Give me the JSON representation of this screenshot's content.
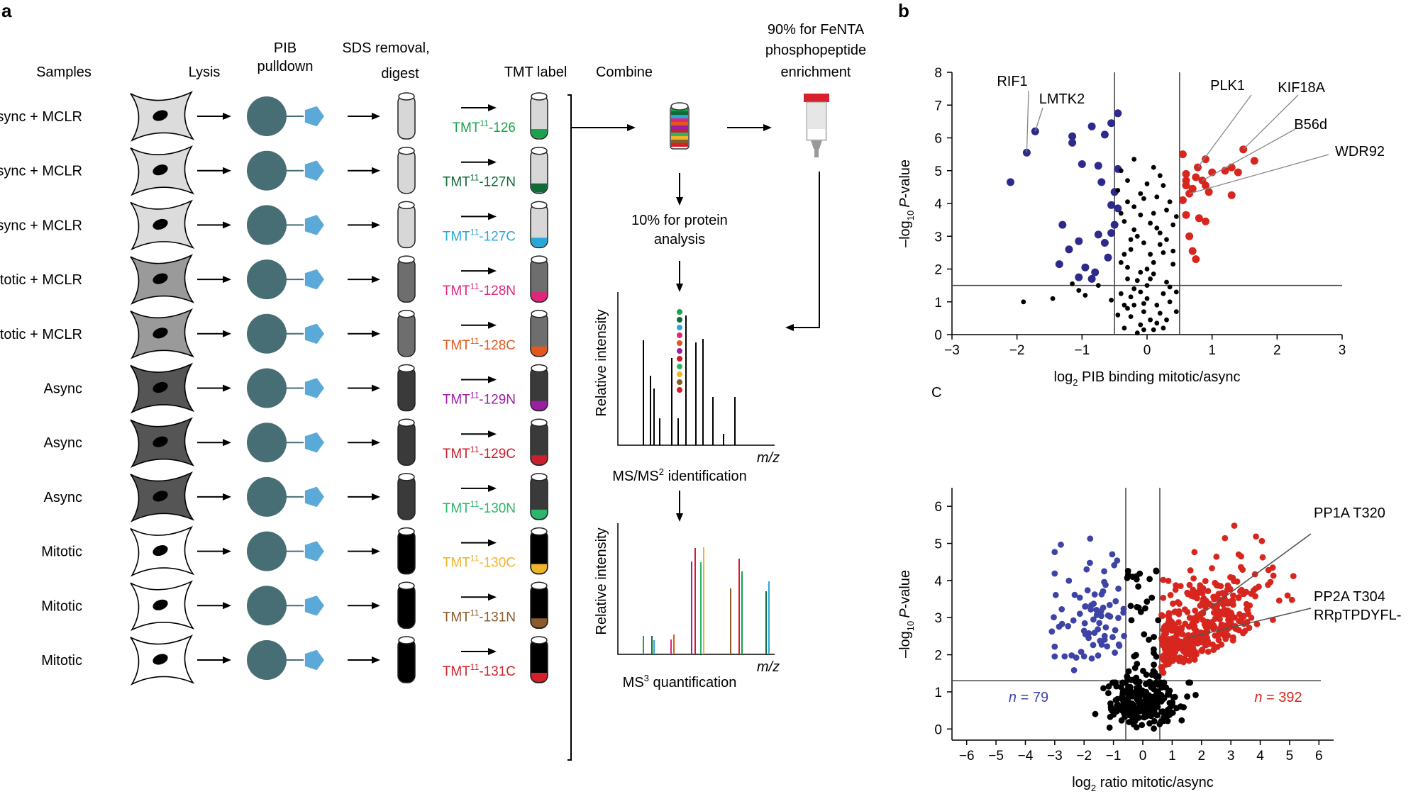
{
  "panel_a": {
    "label": "a",
    "headers": {
      "samples": "Samples",
      "lysis": "Lysis",
      "pib1": "PIB",
      "pib2": "pulldown",
      "sds1": "SDS removal,",
      "sds2": "digest",
      "tmt": "TMT label",
      "combine": "Combine",
      "fenta1": "90% for FeNTA",
      "fenta2": "phosphopeptide",
      "fenta3": "enrichment"
    },
    "rows": [
      {
        "sample": "Async + MCLR",
        "tmt_sup": "11",
        "tmt_suffix": "-126",
        "tag_color": "#1aa34a",
        "cell_fill": "#dcdcdc",
        "tube_fill": "#d7d7d7"
      },
      {
        "sample": "Async + MCLR",
        "tmt_sup": "11",
        "tmt_suffix": "-127N",
        "tag_color": "#0f6b36",
        "cell_fill": "#dcdcdc",
        "tube_fill": "#d7d7d7"
      },
      {
        "sample": "Async + MCLR",
        "tmt_sup": "11",
        "tmt_suffix": "-127C",
        "tag_color": "#29a8d8",
        "cell_fill": "#dcdcdc",
        "tube_fill": "#d7d7d7"
      },
      {
        "sample": "Mitotic + MCLR",
        "tmt_sup": "11",
        "tmt_suffix": "-128N",
        "tag_color": "#e0257a",
        "cell_fill": "#9a9a9a",
        "tube_fill": "#6e6e6e"
      },
      {
        "sample": "Mitotic + MCLR",
        "tmt_sup": "11",
        "tmt_suffix": "-128C",
        "tag_color": "#e4581e",
        "cell_fill": "#9a9a9a",
        "tube_fill": "#6e6e6e"
      },
      {
        "sample": "Async",
        "tmt_sup": "11",
        "tmt_suffix": "-129N",
        "tag_color": "#9b1fa3",
        "cell_fill": "#555555",
        "tube_fill": "#3a3a3a"
      },
      {
        "sample": "Async",
        "tmt_sup": "11",
        "tmt_suffix": "-129C",
        "tag_color": "#c8202c",
        "cell_fill": "#555555",
        "tube_fill": "#3a3a3a"
      },
      {
        "sample": "Async",
        "tmt_sup": "11",
        "tmt_suffix": "-130N",
        "tag_color": "#2db56b",
        "cell_fill": "#555555",
        "tube_fill": "#3a3a3a"
      },
      {
        "sample": "Mitotic",
        "tmt_sup": "11",
        "tmt_suffix": "-130C",
        "tag_color": "#f0b429",
        "cell_fill": "#ffffff",
        "tube_fill": "#000000"
      },
      {
        "sample": "Mitotic",
        "tmt_sup": "11",
        "tmt_suffix": "-131N",
        "tag_color": "#8b5a2b",
        "cell_fill": "#ffffff",
        "tube_fill": "#000000"
      },
      {
        "sample": "Mitotic",
        "tmt_sup": "11",
        "tmt_suffix": "-131C",
        "tag_color": "#d4202a",
        "cell_fill": "#ffffff",
        "tube_fill": "#000000"
      }
    ],
    "tmt_prefix": "TMT",
    "protein1": "10% for protein",
    "protein2": "analysis",
    "ms2": {
      "ylabel": "Relative intensity",
      "xlabel": "m/z",
      "caption_pre": "MS/MS",
      "caption_sup": "2",
      "caption_post": " identification"
    },
    "ms3": {
      "ylabel": "Relative intensity",
      "xlabel": "m/z",
      "caption_pre": "MS",
      "caption_sup": "3",
      "caption_post": " quantification"
    },
    "colors": {
      "bead": "#466e74",
      "pentagon": "#5ba9d9",
      "cap": "#d9212b"
    }
  },
  "panel_b": {
    "label": "b",
    "stray_label": "C",
    "chart_data": [
      {
        "type": "scatter",
        "title": "",
        "xlabel_pre": "log",
        "xlabel_sub": "2",
        "xlabel_post": " PIB binding mitotic/async",
        "ylabel_pre": "–log",
        "ylabel_sub": "10",
        "ylabel_italic": "P",
        "ylabel_post": "-value",
        "xlim": [
          -3,
          3
        ],
        "ylim": [
          0,
          8
        ],
        "xticks": [
          -3,
          -2,
          -1,
          0,
          1,
          2,
          3
        ],
        "xtick_labels": [
          "−3",
          "−2",
          "−1",
          "0",
          "1",
          "2",
          "3"
        ],
        "yticks": [
          0,
          1,
          2,
          3,
          4,
          5,
          6,
          7,
          8
        ],
        "ytick_labels": [
          "0",
          "1",
          "2",
          "3",
          "4",
          "5",
          "6",
          "7",
          "8"
        ],
        "vlines": [
          -0.5,
          0.5
        ],
        "hline": 1.5,
        "annotations": [
          {
            "text": "RIF1",
            "x": -1.85,
            "y": 5.55,
            "label_anchor": "upper-left"
          },
          {
            "text": "LMTK2",
            "x": -1.72,
            "y": 6.2,
            "label_anchor": "upper-left"
          },
          {
            "text": "PLK1",
            "x": 0.78,
            "y": 5.1,
            "label_anchor": "upper-right"
          },
          {
            "text": "KIF18A",
            "x": 1.48,
            "y": 5.65,
            "label_anchor": "upper-right"
          },
          {
            "text": "B56d",
            "x": 0.85,
            "y": 4.7,
            "label_anchor": "right"
          },
          {
            "text": "WDR92",
            "x": 0.65,
            "y": 4.3,
            "label_anchor": "right"
          }
        ],
        "series": [
          {
            "name": "down",
            "color": "#2e2a8c",
            "points": [
              [
                -1.85,
                5.55
              ],
              [
                -1.72,
                6.2
              ],
              [
                -2.1,
                4.65
              ],
              [
                -1.15,
                6.05
              ],
              [
                -1.15,
                5.85
              ],
              [
                -0.85,
                6.35
              ],
              [
                -0.65,
                6.1
              ],
              [
                -0.45,
                6.75
              ],
              [
                -0.55,
                6.45
              ],
              [
                -1.0,
                5.2
              ],
              [
                -0.75,
                5.15
              ],
              [
                -0.45,
                5.05
              ],
              [
                -0.7,
                4.65
              ],
              [
                -0.5,
                4.35
              ],
              [
                -0.55,
                3.95
              ],
              [
                -0.45,
                3.85
              ],
              [
                -1.3,
                3.35
              ],
              [
                -0.5,
                3.35
              ],
              [
                -0.55,
                3.1
              ],
              [
                -0.75,
                3.05
              ],
              [
                -1.05,
                2.85
              ],
              [
                -0.65,
                2.8
              ],
              [
                -1.2,
                2.6
              ],
              [
                -0.6,
                2.35
              ],
              [
                -1.35,
                2.15
              ],
              [
                -0.95,
                2.05
              ],
              [
                -0.8,
                1.9
              ],
              [
                -1.05,
                1.75
              ],
              [
                -0.85,
                1.7
              ]
            ]
          },
          {
            "name": "up",
            "color": "#d7261e",
            "points": [
              [
                0.78,
                5.1
              ],
              [
                1.48,
                5.65
              ],
              [
                0.85,
                4.7
              ],
              [
                0.65,
                4.3
              ],
              [
                0.55,
                5.5
              ],
              [
                0.9,
                5.35
              ],
              [
                1.2,
                5.0
              ],
              [
                1.3,
                5.1
              ],
              [
                1.0,
                4.95
              ],
              [
                0.6,
                4.9
              ],
              [
                0.75,
                4.8
              ],
              [
                0.6,
                4.7
              ],
              [
                0.6,
                4.55
              ],
              [
                0.7,
                4.45
              ],
              [
                0.9,
                4.55
              ],
              [
                1.65,
                5.3
              ],
              [
                1.4,
                4.95
              ],
              [
                0.95,
                4.35
              ],
              [
                1.3,
                4.25
              ],
              [
                0.55,
                4.1
              ],
              [
                0.6,
                3.65
              ],
              [
                0.8,
                3.55
              ],
              [
                0.65,
                3.0
              ],
              [
                0.7,
                2.55
              ],
              [
                0.75,
                2.3
              ],
              [
                0.9,
                3.45
              ]
            ]
          },
          {
            "name": "ns",
            "color": "#000000",
            "points": [
              [
                -1.9,
                1.0
              ],
              [
                -1.45,
                1.1
              ],
              [
                -1.15,
                1.55
              ],
              [
                -1.05,
                1.35
              ],
              [
                -0.95,
                1.2
              ],
              [
                -0.75,
                1.5
              ],
              [
                -0.55,
                1.05
              ],
              [
                -0.35,
                0.9
              ],
              [
                -0.3,
                1.7
              ],
              [
                -0.4,
                2.2
              ],
              [
                -0.25,
                2.6
              ],
              [
                -0.15,
                3.0
              ],
              [
                -0.35,
                3.45
              ],
              [
                -0.2,
                3.9
              ],
              [
                -0.1,
                4.3
              ],
              [
                -0.3,
                4.7
              ],
              [
                -0.4,
                5.0
              ],
              [
                -0.2,
                5.35
              ],
              [
                0.1,
                5.1
              ],
              [
                0.0,
                4.6
              ],
              [
                0.15,
                4.2
              ],
              [
                0.3,
                3.8
              ],
              [
                0.05,
                3.4
              ],
              [
                0.2,
                3.1
              ],
              [
                -0.05,
                2.8
              ],
              [
                0.25,
                2.5
              ],
              [
                0.1,
                2.2
              ],
              [
                -0.1,
                1.9
              ],
              [
                0.3,
                1.6
              ],
              [
                0.45,
                1.3
              ],
              [
                -0.2,
                1.4
              ],
              [
                0.0,
                1.1
              ],
              [
                0.15,
                0.9
              ],
              [
                -0.05,
                0.7
              ],
              [
                0.05,
                0.45
              ],
              [
                -0.1,
                0.3
              ],
              [
                0.1,
                0.15
              ],
              [
                -0.25,
                0.55
              ],
              [
                0.2,
                0.65
              ],
              [
                -0.4,
                1.25
              ],
              [
                0.35,
                1.0
              ],
              [
                -0.15,
                0.05
              ],
              [
                0.0,
                1.5
              ],
              [
                -0.3,
                2.05
              ],
              [
                0.2,
                2.75
              ],
              [
                -0.2,
                3.2
              ],
              [
                0.4,
                3.35
              ],
              [
                0.35,
                4.05
              ],
              [
                -0.45,
                4.4
              ],
              [
                0.25,
                4.55
              ],
              [
                -0.1,
                3.65
              ],
              [
                0.1,
                3.7
              ],
              [
                0.3,
                2.9
              ],
              [
                -0.35,
                2.45
              ],
              [
                0.4,
                2.15
              ],
              [
                0.05,
                1.7
              ],
              [
                -0.25,
                1.15
              ],
              [
                0.25,
                1.25
              ],
              [
                -0.05,
                0.95
              ],
              [
                0.15,
                0.35
              ],
              [
                -0.3,
                0.8
              ],
              [
                0.45,
                0.7
              ],
              [
                -0.45,
                0.6
              ],
              [
                0.3,
                0.45
              ],
              [
                -0.15,
                1.65
              ],
              [
                0.05,
                2.45
              ],
              [
                -0.25,
                2.9
              ],
              [
                0.15,
                3.25
              ],
              [
                -0.4,
                3.7
              ],
              [
                0.45,
                3.6
              ],
              [
                -0.05,
                4.15
              ],
              [
                0.2,
                4.85
              ],
              [
                -0.3,
                4.05
              ],
              [
                0.4,
                2.55
              ],
              [
                0.0,
                2.0
              ],
              [
                -0.1,
                1.3
              ],
              [
                0.1,
                1.85
              ],
              [
                -0.2,
                0.9
              ],
              [
                0.35,
                1.45
              ],
              [
                0.25,
                0.2
              ],
              [
                -0.35,
                0.2
              ],
              [
                -0.05,
                0.15
              ]
            ]
          }
        ]
      },
      {
        "type": "scatter",
        "title": "",
        "xlabel_pre": "log",
        "xlabel_sub": "2",
        "xlabel_post": " ratio mitotic/async",
        "ylabel_pre": "–log",
        "ylabel_sub": "10",
        "ylabel_italic": "P",
        "ylabel_post": "-value",
        "xlim": [
          -6.5,
          6.5
        ],
        "ylim": [
          -0.3,
          6.5
        ],
        "xticks": [
          -6,
          -5,
          -4,
          -3,
          -2,
          -1,
          0,
          1,
          2,
          3,
          4,
          5,
          6
        ],
        "xtick_labels": [
          "−6",
          "−5",
          "−4",
          "−3",
          "−2",
          "−1",
          "0",
          "1",
          "2",
          "3",
          "4",
          "5",
          "6"
        ],
        "yticks": [
          0,
          1,
          2,
          3,
          4,
          5,
          6
        ],
        "ytick_labels": [
          "0",
          "1",
          "2",
          "3",
          "4",
          "5",
          "6"
        ],
        "vlines": [
          -0.58,
          0.58
        ],
        "hline": 1.3,
        "counts": {
          "down": "n = 79",
          "up": "n = 392",
          "n_label": "n",
          "down_value": " = 79",
          "up_value": " = 392"
        },
        "annotations": [
          {
            "text": "PP1A T320",
            "x": 2.0,
            "y": 3.1
          },
          {
            "text": "PP2A T304",
            "x": 1.5,
            "y": 2.45
          },
          {
            "text": "RRpTPDYFL-",
            "x": 0,
            "y": 0
          }
        ]
      }
    ]
  }
}
